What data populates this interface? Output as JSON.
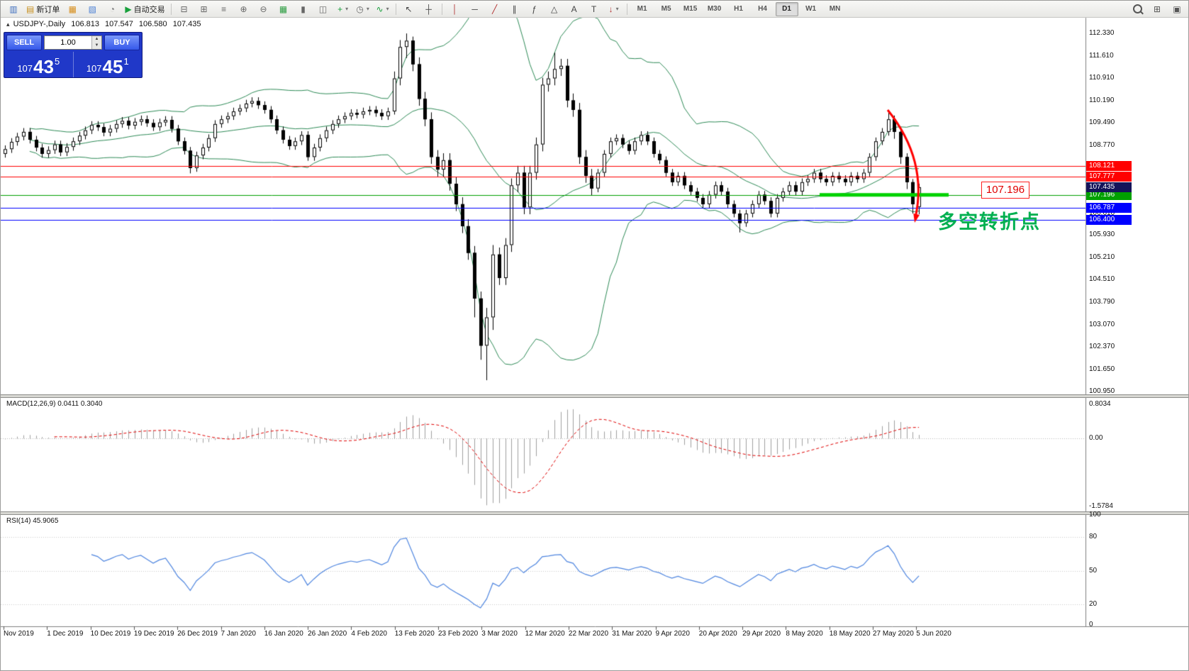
{
  "toolbar": {
    "standard_buttons": [
      {
        "name": "charts-icon",
        "glyph": "▥",
        "color": "#3f6fbf"
      },
      {
        "name": "new-order-button",
        "glyph": "▤",
        "color": "#c89020",
        "label": "新订单"
      },
      {
        "name": "market-watch-icon",
        "glyph": "▦",
        "color": "#d78f1e"
      },
      {
        "name": "navigator-icon",
        "glyph": "▧",
        "color": "#4a7fd4"
      },
      {
        "name": "refresh-icon",
        "glyph": "◔",
        "color": "#777777"
      },
      {
        "name": "autotrading-button",
        "glyph": "▶",
        "color": "#18a03c",
        "label": "自动交易"
      }
    ],
    "chart_buttons": [
      {
        "name": "cascade-windows-icon",
        "glyph": "⊟",
        "color": "#666666"
      },
      {
        "name": "tile-windows-icon",
        "glyph": "⊞",
        "color": "#666666"
      },
      {
        "name": "arrange-icons-icon",
        "glyph": "≡",
        "color": "#666666"
      },
      {
        "name": "zoom-in-icon",
        "glyph": "⊕",
        "color": "#666666"
      },
      {
        "name": "zoom-out-icon",
        "glyph": "⊖",
        "color": "#666666"
      },
      {
        "name": "grid-icon",
        "glyph": "▦",
        "color": "#2f9e44"
      },
      {
        "name": "bar-chart-icon",
        "glyph": "▮",
        "color": "#666666"
      },
      {
        "name": "candlestick-chart-icon",
        "glyph": "◫",
        "color": "#666666"
      },
      {
        "name": "new-chart-icon",
        "glyph": "+",
        "color": "#18a03c",
        "dropdown": true
      },
      {
        "name": "periods-icon",
        "glyph": "◷",
        "color": "#666666",
        "dropdown": true
      },
      {
        "name": "indicators-icon",
        "glyph": "∿",
        "color": "#18a03c",
        "dropdown": true
      }
    ],
    "cursor_buttons": [
      {
        "name": "cursor-icon",
        "glyph": "↖",
        "color": "#444444"
      },
      {
        "name": "crosshair-icon",
        "glyph": "┼",
        "color": "#444444"
      }
    ],
    "line_tools": [
      {
        "name": "vertical-line-icon",
        "glyph": "│",
        "color": "#b03030"
      },
      {
        "name": "horizontal-line-icon",
        "glyph": "─",
        "color": "#444444"
      },
      {
        "name": "trendline-icon",
        "glyph": "╱",
        "color": "#b03030"
      },
      {
        "name": "channel-icon",
        "glyph": "∥",
        "color": "#444444"
      },
      {
        "name": "fibonacci-icon",
        "glyph": "ƒ",
        "color": "#444444"
      },
      {
        "name": "shapes-icon",
        "glyph": "△",
        "color": "#444444"
      },
      {
        "name": "text-icon",
        "glyph": "A",
        "color": "#444444"
      },
      {
        "name": "label-icon",
        "glyph": "T",
        "color": "#444444"
      },
      {
        "name": "arrows-icon",
        "glyph": "↓",
        "color": "#b03030",
        "dropdown": true
      }
    ],
    "timeframes": [
      "M1",
      "M5",
      "M15",
      "M30",
      "H1",
      "H4",
      "D1",
      "W1",
      "MN"
    ],
    "active_timeframe": "D1",
    "right_buttons": [
      {
        "name": "search-icon",
        "glyph": "",
        "color": "#555555"
      },
      {
        "name": "new-window-icon",
        "glyph": "⊞",
        "color": "#555555"
      },
      {
        "name": "window-list-icon",
        "glyph": "▣",
        "color": "#555555"
      }
    ]
  },
  "one_click": {
    "sell_label": "SELL",
    "buy_label": "BUY",
    "volume": "1.00",
    "sell_price_small": "107",
    "sell_price_big": "43",
    "sell_price_sup": "5",
    "buy_price_small": "107",
    "buy_price_big": "45",
    "buy_price_sup": "1"
  },
  "chart_header": {
    "symbol": "USDJPY-,Daily",
    "open": "106.813",
    "high": "107.547",
    "low": "106.580",
    "close": "107.435"
  },
  "annotations": {
    "level_label": "107.196",
    "level_value": 107.196,
    "level_line_color": "#00D200",
    "level_box_border": "#FF2020",
    "turning_point_text": "多空转折点",
    "turning_point_color": "#00B050",
    "arrow_color": "#FF0000"
  },
  "chart_data": {
    "type": "candlestick",
    "symbol": "USDJPY",
    "timeframe": "Daily",
    "y_ticks": [
      "112.330",
      "111.610",
      "110.910",
      "110.190",
      "109.490",
      "108.770",
      "108.050",
      "107.330",
      "106.610",
      "105.930",
      "105.210",
      "104.510",
      "103.790",
      "103.070",
      "102.370",
      "101.650",
      "100.950"
    ],
    "y_range": [
      100.85,
      112.83
    ],
    "x_labels": [
      "Nov 2019",
      "1 Dec 2019",
      "10 Dec 2019",
      "19 Dec 2019",
      "26 Dec 2019",
      "7 Jan 2020",
      "16 Jan 2020",
      "26 Jan 2020",
      "4 Feb 2020",
      "13 Feb 2020",
      "23 Feb 2020",
      "3 Mar 2020",
      "12 Mar 2020",
      "22 Mar 2020",
      "31 Mar 2020",
      "9 Apr 2020",
      "20 Apr 2020",
      "29 Apr 2020",
      "8 May 2020",
      "18 May 2020",
      "27 May 2020",
      "5 Jun 2020"
    ],
    "price_lines": [
      {
        "value": 108.121,
        "label": "108.121",
        "color": "#FF0000"
      },
      {
        "value": 107.777,
        "label": "107.777",
        "color": "#FF0000"
      },
      {
        "value": 107.196,
        "label": "107.196",
        "color": "#00A000"
      },
      {
        "value": 106.787,
        "label": "106.787",
        "color": "#0000FF"
      },
      {
        "value": 106.4,
        "label": "106.400",
        "color": "#0000FF"
      }
    ],
    "current_price": {
      "value": 107.435,
      "label": "107.435",
      "box_color": "#15145A"
    },
    "bollinger": {
      "period": 20,
      "deviation": 2,
      "color": "#2E8B57"
    },
    "ohlc": [
      [
        108.5,
        108.77,
        108.38,
        108.65
      ],
      [
        108.65,
        109.0,
        108.53,
        108.88
      ],
      [
        108.88,
        109.17,
        108.76,
        109.05
      ],
      [
        109.05,
        109.32,
        108.93,
        109.2
      ],
      [
        109.2,
        109.32,
        108.83,
        108.95
      ],
      [
        108.95,
        109.07,
        108.58,
        108.7
      ],
      [
        108.7,
        108.82,
        108.38,
        108.5
      ],
      [
        108.5,
        108.74,
        108.38,
        108.62
      ],
      [
        108.62,
        108.92,
        108.5,
        108.8
      ],
      [
        108.8,
        108.92,
        108.43,
        108.55
      ],
      [
        108.55,
        108.84,
        108.43,
        108.72
      ],
      [
        108.72,
        109.02,
        108.6,
        108.9
      ],
      [
        108.9,
        109.2,
        108.78,
        109.08
      ],
      [
        109.08,
        109.37,
        108.96,
        109.25
      ],
      [
        109.25,
        109.54,
        109.13,
        109.42
      ],
      [
        109.42,
        109.54,
        109.23,
        109.35
      ],
      [
        109.35,
        109.47,
        109.06,
        109.18
      ],
      [
        109.18,
        109.42,
        109.06,
        109.3
      ],
      [
        109.3,
        109.57,
        109.18,
        109.45
      ],
      [
        109.45,
        109.67,
        109.33,
        109.55
      ],
      [
        109.55,
        109.67,
        109.28,
        109.4
      ],
      [
        109.4,
        109.64,
        109.28,
        109.52
      ],
      [
        109.52,
        109.72,
        109.4,
        109.6
      ],
      [
        109.6,
        109.72,
        109.36,
        109.48
      ],
      [
        109.48,
        109.6,
        109.23,
        109.35
      ],
      [
        109.35,
        109.62,
        109.23,
        109.5
      ],
      [
        109.5,
        109.7,
        109.38,
        109.58
      ],
      [
        109.58,
        109.7,
        109.18,
        109.3
      ],
      [
        109.3,
        109.42,
        108.78,
        108.9
      ],
      [
        108.9,
        109.02,
        108.48,
        108.6
      ],
      [
        108.6,
        108.72,
        107.88,
        108.05
      ],
      [
        108.05,
        108.57,
        107.93,
        108.45
      ],
      [
        108.45,
        108.82,
        108.33,
        108.7
      ],
      [
        108.7,
        109.12,
        108.58,
        109.0
      ],
      [
        109.0,
        109.57,
        108.88,
        109.45
      ],
      [
        109.45,
        109.72,
        109.33,
        109.6
      ],
      [
        109.6,
        109.82,
        109.48,
        109.7
      ],
      [
        109.7,
        109.97,
        109.58,
        109.85
      ],
      [
        109.85,
        110.07,
        109.73,
        109.95
      ],
      [
        109.95,
        110.22,
        109.83,
        110.1
      ],
      [
        110.1,
        110.3,
        109.98,
        110.18
      ],
      [
        110.18,
        110.3,
        109.93,
        110.05
      ],
      [
        110.05,
        110.17,
        109.78,
        109.9
      ],
      [
        109.9,
        110.02,
        109.48,
        109.6
      ],
      [
        109.6,
        109.72,
        109.13,
        109.25
      ],
      [
        109.25,
        109.37,
        108.83,
        108.95
      ],
      [
        108.95,
        109.07,
        108.63,
        108.75
      ],
      [
        108.75,
        109.02,
        108.63,
        108.9
      ],
      [
        108.9,
        109.22,
        108.78,
        109.1
      ],
      [
        109.1,
        109.22,
        108.28,
        108.4
      ],
      [
        108.4,
        108.82,
        108.28,
        108.7
      ],
      [
        108.7,
        109.12,
        108.58,
        109.0
      ],
      [
        109.0,
        109.37,
        108.88,
        109.25
      ],
      [
        109.25,
        109.57,
        109.13,
        109.45
      ],
      [
        109.45,
        109.72,
        109.33,
        109.6
      ],
      [
        109.6,
        109.82,
        109.48,
        109.7
      ],
      [
        109.7,
        109.92,
        109.58,
        109.8
      ],
      [
        109.8,
        109.92,
        109.63,
        109.75
      ],
      [
        109.75,
        109.97,
        109.63,
        109.85
      ],
      [
        109.85,
        110.02,
        109.73,
        109.9
      ],
      [
        109.9,
        110.02,
        109.68,
        109.8
      ],
      [
        109.8,
        109.92,
        109.58,
        109.7
      ],
      [
        109.7,
        109.97,
        109.58,
        109.85
      ],
      [
        109.85,
        111.12,
        109.75,
        110.9
      ],
      [
        110.9,
        112.12,
        110.68,
        111.9
      ],
      [
        111.9,
        112.33,
        111.55,
        112.1
      ],
      [
        112.1,
        112.23,
        111.13,
        111.35
      ],
      [
        111.35,
        111.57,
        110.03,
        110.25
      ],
      [
        110.25,
        110.47,
        109.38,
        109.6
      ],
      [
        109.6,
        109.82,
        108.18,
        108.4
      ],
      [
        108.4,
        108.62,
        107.78,
        108.0
      ],
      [
        108.0,
        108.52,
        107.78,
        108.3
      ],
      [
        108.3,
        108.52,
        107.33,
        107.55
      ],
      [
        107.55,
        107.77,
        106.68,
        106.9
      ],
      [
        106.9,
        107.12,
        105.98,
        106.2
      ],
      [
        106.2,
        106.42,
        105.13,
        105.35
      ],
      [
        105.35,
        105.57,
        103.3,
        103.9
      ],
      [
        103.9,
        104.12,
        101.95,
        102.4
      ],
      [
        102.4,
        103.6,
        101.3,
        103.3
      ],
      [
        103.3,
        105.6,
        102.9,
        105.3
      ],
      [
        105.3,
        105.52,
        104.33,
        104.55
      ],
      [
        104.55,
        105.82,
        104.33,
        105.6
      ],
      [
        105.6,
        107.72,
        105.38,
        107.5
      ],
      [
        107.5,
        108.12,
        107.28,
        107.9
      ],
      [
        107.9,
        108.12,
        106.58,
        106.8
      ],
      [
        106.8,
        108.12,
        106.58,
        107.9
      ],
      [
        107.9,
        109.02,
        107.68,
        108.8
      ],
      [
        108.8,
        110.92,
        108.58,
        110.7
      ],
      [
        110.7,
        111.12,
        110.48,
        110.9
      ],
      [
        110.9,
        111.72,
        110.68,
        111.2
      ],
      [
        111.2,
        111.52,
        110.98,
        111.3
      ],
      [
        111.3,
        111.52,
        109.98,
        110.2
      ],
      [
        110.2,
        110.42,
        109.68,
        109.9
      ],
      [
        109.9,
        110.12,
        108.18,
        108.4
      ],
      [
        108.4,
        108.62,
        107.58,
        107.8
      ],
      [
        107.8,
        108.02,
        107.18,
        107.4
      ],
      [
        107.4,
        108.02,
        107.28,
        107.9
      ],
      [
        107.9,
        108.62,
        107.78,
        108.5
      ],
      [
        108.5,
        109.02,
        108.38,
        108.9
      ],
      [
        108.9,
        109.12,
        108.78,
        109.0
      ],
      [
        109.0,
        109.12,
        108.68,
        108.8
      ],
      [
        108.8,
        108.92,
        108.48,
        108.6
      ],
      [
        108.6,
        109.02,
        108.48,
        108.9
      ],
      [
        108.9,
        109.22,
        108.78,
        109.1
      ],
      [
        109.1,
        109.22,
        108.78,
        108.9
      ],
      [
        108.9,
        109.02,
        108.38,
        108.5
      ],
      [
        108.5,
        108.62,
        108.18,
        108.3
      ],
      [
        108.3,
        108.42,
        107.78,
        107.9
      ],
      [
        107.9,
        108.02,
        107.48,
        107.6
      ],
      [
        107.6,
        107.92,
        107.48,
        107.8
      ],
      [
        107.8,
        107.92,
        107.38,
        107.5
      ],
      [
        107.5,
        107.62,
        107.18,
        107.3
      ],
      [
        107.3,
        107.42,
        106.98,
        107.1
      ],
      [
        107.1,
        107.22,
        106.78,
        106.9
      ],
      [
        106.9,
        107.32,
        106.78,
        107.2
      ],
      [
        107.2,
        107.62,
        107.08,
        107.5
      ],
      [
        107.5,
        107.62,
        107.18,
        107.3
      ],
      [
        107.3,
        107.42,
        106.78,
        106.9
      ],
      [
        106.9,
        107.02,
        106.48,
        106.6
      ],
      [
        106.6,
        106.72,
        106.0,
        106.3
      ],
      [
        106.3,
        106.72,
        106.18,
        106.6
      ],
      [
        106.6,
        107.02,
        106.48,
        106.9
      ],
      [
        106.9,
        107.32,
        106.78,
        107.2
      ],
      [
        107.2,
        107.32,
        106.88,
        107.0
      ],
      [
        107.0,
        107.12,
        106.48,
        106.6
      ],
      [
        106.6,
        107.22,
        106.48,
        107.1
      ],
      [
        107.1,
        107.42,
        106.98,
        107.3
      ],
      [
        107.3,
        107.62,
        107.18,
        107.5
      ],
      [
        107.5,
        107.62,
        107.18,
        107.3
      ],
      [
        107.3,
        107.72,
        107.18,
        107.6
      ],
      [
        107.6,
        107.82,
        107.48,
        107.7
      ],
      [
        107.7,
        108.02,
        107.58,
        107.9
      ],
      [
        107.9,
        108.02,
        107.58,
        107.7
      ],
      [
        107.7,
        107.82,
        107.48,
        107.6
      ],
      [
        107.6,
        107.92,
        107.48,
        107.8
      ],
      [
        107.8,
        107.92,
        107.58,
        107.7
      ],
      [
        107.7,
        107.82,
        107.48,
        107.6
      ],
      [
        107.6,
        107.92,
        107.48,
        107.8
      ],
      [
        107.8,
        107.92,
        107.58,
        107.7
      ],
      [
        107.7,
        108.02,
        107.58,
        107.9
      ],
      [
        107.9,
        108.52,
        107.78,
        108.4
      ],
      [
        108.4,
        109.02,
        108.28,
        108.9
      ],
      [
        108.9,
        109.32,
        108.78,
        109.2
      ],
      [
        109.2,
        109.85,
        109.08,
        109.6
      ],
      [
        109.6,
        109.72,
        108.98,
        109.2
      ],
      [
        109.2,
        109.32,
        108.18,
        108.4
      ],
      [
        108.4,
        108.52,
        107.38,
        107.6
      ],
      [
        107.6,
        107.7,
        106.6,
        106.9
      ],
      [
        106.81,
        107.55,
        106.58,
        107.44
      ]
    ],
    "indicators": [
      {
        "name": "MACD",
        "label": "MACD(12,26,9) 0.0411 0.3040",
        "params": [
          12,
          26,
          9
        ],
        "current": [
          0.0411,
          0.304
        ],
        "y_ticks": [
          "0.8034",
          "0.00",
          "-1.5784"
        ],
        "range": [
          -1.7,
          0.95
        ],
        "histogram_color": "#A0A0A0",
        "signal_color": "#E00000"
      },
      {
        "name": "RSI",
        "label": "RSI(14) 45.9065",
        "params": [
          14
        ],
        "current": 45.9065,
        "y_ticks": [
          "100",
          "80",
          "50",
          "20",
          "0"
        ],
        "range": [
          0,
          100
        ],
        "line_color": "#4F86E0",
        "levels": [
          80,
          50,
          20
        ]
      }
    ]
  }
}
